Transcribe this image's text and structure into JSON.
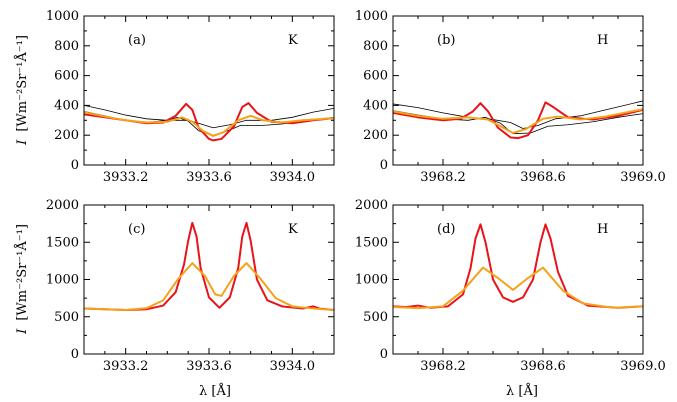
{
  "figure": {
    "ylabel_main": "I",
    "ylabel_unit": "[Wm⁻²Sr⁻¹Å⁻¹]",
    "xlabel": "λ [Å]"
  },
  "colors": {
    "red": "#e8141a",
    "orange": "#f5a21b",
    "black": "#000000"
  },
  "chart_data": [
    {
      "id": "a",
      "type": "line",
      "label": "(a)",
      "line_name": "K",
      "xlim": [
        3933.0,
        3934.2
      ],
      "ylim": [
        0,
        1000
      ],
      "xticks": [
        3933.2,
        3933.6,
        3934.0
      ],
      "xtick_labels": [
        "3933.2",
        "3933.6",
        "3934.0"
      ],
      "yticks": [
        0,
        200,
        400,
        600,
        800,
        1000
      ],
      "ytick_labels": [
        "0",
        "200",
        "400",
        "600",
        "800",
        "1000"
      ],
      "series": [
        {
          "color": "black",
          "width": 0.8,
          "points": [
            [
              3933.0,
              400
            ],
            [
              3933.1,
              370
            ],
            [
              3933.2,
              335
            ],
            [
              3933.3,
              310
            ],
            [
              3933.4,
              300
            ],
            [
              3933.5,
              300
            ],
            [
              3933.55,
              280
            ],
            [
              3933.62,
              250
            ],
            [
              3933.7,
              270
            ],
            [
              3933.78,
              300
            ],
            [
              3933.9,
              300
            ],
            [
              3934.0,
              320
            ],
            [
              3934.1,
              355
            ],
            [
              3934.2,
              380
            ]
          ]
        },
        {
          "color": "black",
          "width": 0.8,
          "points": [
            [
              3933.0,
              360
            ],
            [
              3933.1,
              330
            ],
            [
              3933.2,
              300
            ],
            [
              3933.3,
              285
            ],
            [
              3933.4,
              300
            ],
            [
              3933.45,
              320
            ],
            [
              3933.5,
              295
            ],
            [
              3933.55,
              230
            ],
            [
              3933.62,
              200
            ],
            [
              3933.7,
              235
            ],
            [
              3933.75,
              265
            ],
            [
              3933.85,
              265
            ],
            [
              3933.95,
              275
            ],
            [
              3934.05,
              295
            ],
            [
              3934.2,
              320
            ]
          ]
        },
        {
          "color": "red",
          "width": 2,
          "points": [
            [
              3933.0,
              340
            ],
            [
              3933.1,
              320
            ],
            [
              3933.2,
              300
            ],
            [
              3933.3,
              280
            ],
            [
              3933.38,
              285
            ],
            [
              3933.44,
              330
            ],
            [
              3933.49,
              410
            ],
            [
              3933.52,
              370
            ],
            [
              3933.55,
              250
            ],
            [
              3933.6,
              175
            ],
            [
              3933.62,
              165
            ],
            [
              3933.66,
              175
            ],
            [
              3933.72,
              260
            ],
            [
              3933.76,
              390
            ],
            [
              3933.79,
              415
            ],
            [
              3933.83,
              350
            ],
            [
              3933.9,
              290
            ],
            [
              3934.0,
              280
            ],
            [
              3934.1,
              300
            ],
            [
              3934.2,
              315
            ]
          ]
        },
        {
          "color": "orange",
          "width": 2,
          "points": [
            [
              3933.0,
              355
            ],
            [
              3933.1,
              325
            ],
            [
              3933.2,
              300
            ],
            [
              3933.3,
              285
            ],
            [
              3933.4,
              290
            ],
            [
              3933.47,
              320
            ],
            [
              3933.52,
              290
            ],
            [
              3933.57,
              230
            ],
            [
              3933.62,
              195
            ],
            [
              3933.67,
              220
            ],
            [
              3933.74,
              300
            ],
            [
              3933.8,
              330
            ],
            [
              3933.86,
              300
            ],
            [
              3933.95,
              285
            ],
            [
              3934.05,
              300
            ],
            [
              3934.2,
              315
            ]
          ]
        }
      ]
    },
    {
      "id": "b",
      "type": "line",
      "label": "(b)",
      "line_name": "H",
      "xlim": [
        3968.0,
        3969.0
      ],
      "ylim": [
        0,
        1000
      ],
      "xticks": [
        3968.2,
        3968.6,
        3969.0
      ],
      "xtick_labels": [
        "3968.2",
        "3968.6",
        "3969.0"
      ],
      "yticks": [
        0,
        200,
        400,
        600,
        800,
        1000
      ],
      "ytick_labels": [
        "0",
        "200",
        "400",
        "600",
        "800",
        "1000"
      ],
      "series": [
        {
          "color": "black",
          "width": 0.8,
          "points": [
            [
              3968.0,
              410
            ],
            [
              3968.1,
              385
            ],
            [
              3968.2,
              350
            ],
            [
              3968.3,
              320
            ],
            [
              3968.4,
              305
            ],
            [
              3968.47,
              285
            ],
            [
              3968.52,
              245
            ],
            [
              3968.58,
              265
            ],
            [
              3968.65,
              310
            ],
            [
              3968.75,
              330
            ],
            [
              3968.85,
              370
            ],
            [
              3969.0,
              430
            ]
          ]
        },
        {
          "color": "black",
          "width": 0.8,
          "points": [
            [
              3968.0,
              365
            ],
            [
              3968.1,
              335
            ],
            [
              3968.2,
              310
            ],
            [
              3968.3,
              300
            ],
            [
              3968.37,
              320
            ],
            [
              3968.43,
              280
            ],
            [
              3968.48,
              210
            ],
            [
              3968.55,
              215
            ],
            [
              3968.62,
              260
            ],
            [
              3968.7,
              270
            ],
            [
              3968.8,
              290
            ],
            [
              3968.9,
              320
            ],
            [
              3969.0,
              345
            ]
          ]
        },
        {
          "color": "red",
          "width": 2,
          "points": [
            [
              3968.0,
              350
            ],
            [
              3968.1,
              320
            ],
            [
              3968.2,
              300
            ],
            [
              3968.27,
              310
            ],
            [
              3968.32,
              360
            ],
            [
              3968.35,
              415
            ],
            [
              3968.38,
              360
            ],
            [
              3968.42,
              250
            ],
            [
              3968.47,
              185
            ],
            [
              3968.5,
              180
            ],
            [
              3968.54,
              200
            ],
            [
              3968.58,
              300
            ],
            [
              3968.61,
              420
            ],
            [
              3968.64,
              390
            ],
            [
              3968.7,
              320
            ],
            [
              3968.8,
              305
            ],
            [
              3968.9,
              330
            ],
            [
              3969.0,
              370
            ]
          ]
        },
        {
          "color": "orange",
          "width": 2,
          "points": [
            [
              3968.0,
              360
            ],
            [
              3968.1,
              330
            ],
            [
              3968.2,
              310
            ],
            [
              3968.3,
              320
            ],
            [
              3968.38,
              305
            ],
            [
              3968.43,
              260
            ],
            [
              3968.48,
              215
            ],
            [
              3968.53,
              240
            ],
            [
              3968.6,
              310
            ],
            [
              3968.66,
              325
            ],
            [
              3968.75,
              305
            ],
            [
              3968.85,
              325
            ],
            [
              3969.0,
              375
            ]
          ]
        }
      ]
    },
    {
      "id": "c",
      "type": "line",
      "label": "(c)",
      "line_name": "K",
      "xlim": [
        3933.0,
        3934.2
      ],
      "ylim": [
        0,
        2000
      ],
      "xticks": [
        3933.2,
        3933.6,
        3934.0
      ],
      "xtick_labels": [
        "3933.2",
        "3933.6",
        "3934.0"
      ],
      "yticks": [
        0,
        500,
        1000,
        1500,
        2000
      ],
      "ytick_labels": [
        "0",
        "500",
        "1000",
        "1500",
        "2000"
      ],
      "series": [
        {
          "color": "red",
          "width": 2,
          "points": [
            [
              3933.0,
              610
            ],
            [
              3933.1,
              600
            ],
            [
              3933.2,
              590
            ],
            [
              3933.3,
              600
            ],
            [
              3933.38,
              650
            ],
            [
              3933.44,
              830
            ],
            [
              3933.48,
              1200
            ],
            [
              3933.5,
              1520
            ],
            [
              3933.52,
              1760
            ],
            [
              3933.54,
              1580
            ],
            [
              3933.56,
              1150
            ],
            [
              3933.6,
              760
            ],
            [
              3933.65,
              620
            ],
            [
              3933.7,
              760
            ],
            [
              3933.74,
              1150
            ],
            [
              3933.76,
              1580
            ],
            [
              3933.78,
              1760
            ],
            [
              3933.8,
              1520
            ],
            [
              3933.83,
              1000
            ],
            [
              3933.88,
              720
            ],
            [
              3933.95,
              640
            ],
            [
              3934.05,
              610
            ],
            [
              3934.1,
              640
            ],
            [
              3934.13,
              610
            ],
            [
              3934.2,
              590
            ]
          ]
        },
        {
          "color": "orange",
          "width": 2,
          "points": [
            [
              3933.0,
              610
            ],
            [
              3933.1,
              600
            ],
            [
              3933.2,
              590
            ],
            [
              3933.3,
              615
            ],
            [
              3933.38,
              720
            ],
            [
              3933.45,
              1000
            ],
            [
              3933.52,
              1220
            ],
            [
              3933.58,
              1050
            ],
            [
              3933.63,
              800
            ],
            [
              3933.66,
              780
            ],
            [
              3933.72,
              1050
            ],
            [
              3933.78,
              1220
            ],
            [
              3933.85,
              1000
            ],
            [
              3933.92,
              750
            ],
            [
              3934.0,
              640
            ],
            [
              3934.1,
              610
            ],
            [
              3934.2,
              590
            ]
          ]
        }
      ]
    },
    {
      "id": "d",
      "type": "line",
      "label": "(d)",
      "line_name": "H",
      "xlim": [
        3968.0,
        3969.0
      ],
      "ylim": [
        0,
        2000
      ],
      "xticks": [
        3968.2,
        3968.6,
        3969.0
      ],
      "xtick_labels": [
        "3968.2",
        "3968.6",
        "3969.0"
      ],
      "yticks": [
        0,
        500,
        1000,
        1500,
        2000
      ],
      "ytick_labels": [
        "0",
        "500",
        "1000",
        "1500",
        "2000"
      ],
      "series": [
        {
          "color": "red",
          "width": 2,
          "points": [
            [
              3968.0,
              640
            ],
            [
              3968.05,
              630
            ],
            [
              3968.1,
              650
            ],
            [
              3968.15,
              620
            ],
            [
              3968.22,
              640
            ],
            [
              3968.28,
              800
            ],
            [
              3968.31,
              1150
            ],
            [
              3968.33,
              1550
            ],
            [
              3968.35,
              1740
            ],
            [
              3968.37,
              1500
            ],
            [
              3968.4,
              1000
            ],
            [
              3968.44,
              760
            ],
            [
              3968.48,
              700
            ],
            [
              3968.52,
              760
            ],
            [
              3968.56,
              1000
            ],
            [
              3968.59,
              1500
            ],
            [
              3968.61,
              1740
            ],
            [
              3968.63,
              1550
            ],
            [
              3968.66,
              1100
            ],
            [
              3968.7,
              780
            ],
            [
              3968.78,
              650
            ],
            [
              3968.9,
              620
            ],
            [
              3969.0,
              640
            ]
          ]
        },
        {
          "color": "orange",
          "width": 2,
          "points": [
            [
              3968.0,
              630
            ],
            [
              3968.1,
              615
            ],
            [
              3968.2,
              640
            ],
            [
              3968.28,
              850
            ],
            [
              3968.36,
              1160
            ],
            [
              3968.42,
              1020
            ],
            [
              3968.48,
              860
            ],
            [
              3968.54,
              1020
            ],
            [
              3968.6,
              1160
            ],
            [
              3968.68,
              850
            ],
            [
              3968.76,
              680
            ],
            [
              3968.88,
              620
            ],
            [
              3969.0,
              640
            ]
          ]
        }
      ]
    }
  ]
}
